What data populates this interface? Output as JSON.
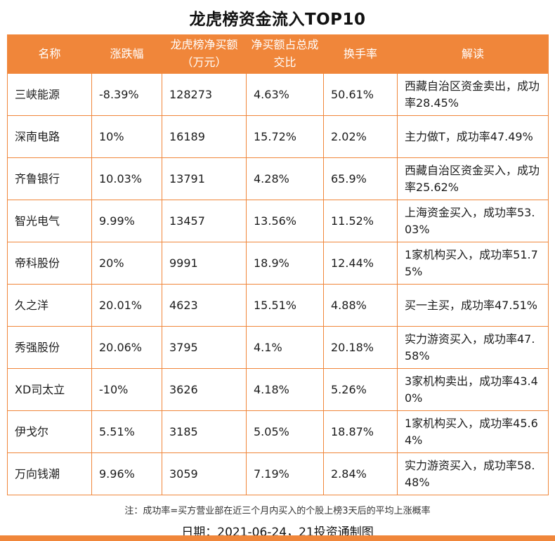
{
  "title": "龙虎榜资金流入TOP10",
  "chart_data": {
    "type": "table",
    "title": "龙虎榜资金流入TOP10",
    "columns": [
      "名称",
      "涨跌幅",
      "龙虎榜净买额（万元）",
      "净买额占总成交比",
      "换手率",
      "解读"
    ],
    "column_keys": [
      "name",
      "change",
      "net-buy",
      "net-buy-ratio",
      "turnover",
      "interpretation"
    ],
    "rows": [
      [
        "三峡能源",
        "-8.39%",
        "128273",
        "4.63%",
        "50.61%",
        "西藏自治区资金卖出，成功率28.45%"
      ],
      [
        "深南电路",
        "10%",
        "16189",
        "15.72%",
        "2.02%",
        "主力做T，成功率47.49%"
      ],
      [
        "齐鲁银行",
        "10.03%",
        "13791",
        "4.28%",
        "65.9%",
        "西藏自治区资金买入，成功率25.62%"
      ],
      [
        "智光电气",
        "9.99%",
        "13457",
        "13.56%",
        "11.52%",
        "上海资金买入，成功率53.03%"
      ],
      [
        "帝科股份",
        "20%",
        "9991",
        "18.9%",
        "12.44%",
        "1家机构买入，成功率51.75%"
      ],
      [
        "久之洋",
        "20.01%",
        "4623",
        "15.51%",
        "4.88%",
        "买一主买，成功率47.51%"
      ],
      [
        "秀强股份",
        "20.06%",
        "3795",
        "4.1%",
        "20.18%",
        "实力游资买入，成功率47.58%"
      ],
      [
        "XD司太立",
        "-10%",
        "3626",
        "4.18%",
        "5.26%",
        "3家机构卖出，成功率43.40%"
      ],
      [
        "伊戈尔",
        "5.51%",
        "3185",
        "5.05%",
        "18.87%",
        "1家机构买入，成功率45.64%"
      ],
      [
        "万向钱潮",
        "9.96%",
        "3059",
        "7.19%",
        "2.84%",
        "实力游资买入，成功率58.48%"
      ]
    ]
  },
  "footnote": "注：成功率=买方营业部在近三个月内买入的个股上榜3天后的平均上涨概率",
  "date_caption": "日期：2021-06-24，21投资通制图",
  "colors": {
    "accent_orange": "#F0863A",
    "text_black": "#1c1c1c",
    "header_text": "#ffffff"
  }
}
